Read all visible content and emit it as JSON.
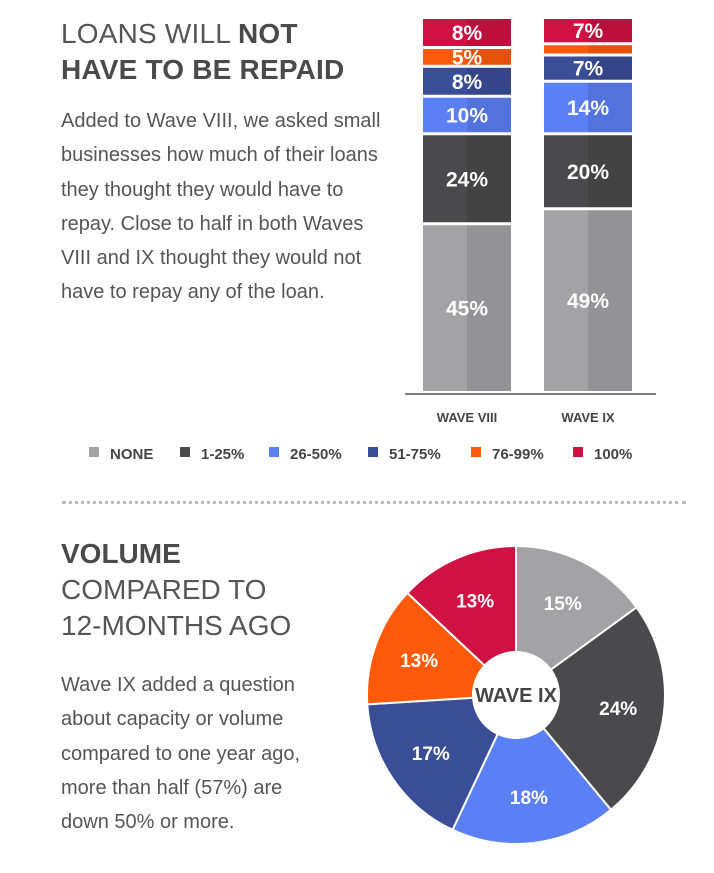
{
  "section1": {
    "title_regular": "LOANS WILL ",
    "title_bold": "NOT",
    "title_line2": "HAVE TO BE REPAID",
    "body": "Added to Wave VIII, we asked small businesses how much of their loans they thought they would have to repay. Close to half in both Waves VIII and IX thought they would not have to repay any of the loan."
  },
  "section2": {
    "title_bold": "VOLUME",
    "title_line2": "COMPARED TO",
    "title_line3": "12-MONTHS AGO",
    "body": "Wave IX added a question about capacity or volume compared to one year ago, more than half (57%) are down 50% or more."
  },
  "chart_data": [
    {
      "type": "bar",
      "stacked": true,
      "categories": [
        "WAVE VIII",
        "WAVE IX"
      ],
      "series": [
        {
          "name": "NONE",
          "color": "#a3a3a5",
          "values": [
            45,
            49
          ],
          "labels": [
            "45%",
            "49%"
          ]
        },
        {
          "name": "1-25%",
          "color": "#4a4a4c",
          "values": [
            24,
            20
          ],
          "labels": [
            "24%",
            "20%"
          ]
        },
        {
          "name": "26-50%",
          "color": "#5b7ff5",
          "values": [
            10,
            14
          ],
          "labels": [
            "10%",
            "14%"
          ]
        },
        {
          "name": "51-75%",
          "color": "#3a4e98",
          "values": [
            8,
            7
          ],
          "labels": [
            "8%",
            "7%"
          ]
        },
        {
          "name": "76-99%",
          "color": "#ff5a0a",
          "values": [
            5,
            3
          ],
          "labels": [
            "5%",
            ""
          ]
        },
        {
          "name": "100%",
          "color": "#cf1242",
          "values": [
            8,
            7
          ],
          "labels": [
            "8%",
            "7%"
          ]
        }
      ],
      "ylim": [
        0,
        100
      ],
      "legend": "bottom"
    },
    {
      "type": "pie",
      "donut": true,
      "center_label": "WAVE IX",
      "slices": [
        {
          "label": "15%",
          "value": 15,
          "color": "#a3a3a5"
        },
        {
          "label": "24%",
          "value": 24,
          "color": "#4a4a4c"
        },
        {
          "label": "18%",
          "value": 18,
          "color": "#5b7ff5"
        },
        {
          "label": "17%",
          "value": 17,
          "color": "#3a4e98"
        },
        {
          "label": "13%",
          "value": 13,
          "color": "#ff5a0a"
        },
        {
          "label": "13%",
          "value": 13,
          "color": "#cf1242"
        }
      ]
    }
  ]
}
